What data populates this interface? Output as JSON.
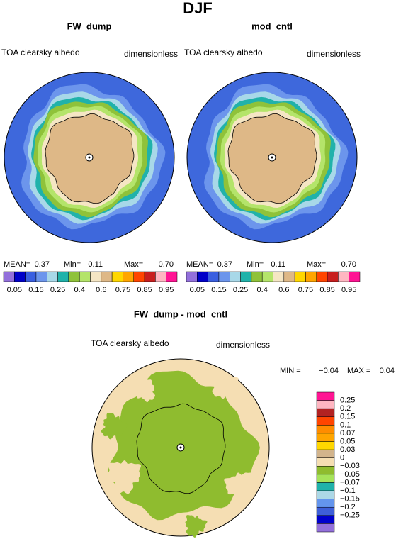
{
  "title": "DJF",
  "panels": [
    {
      "title": "FW_dump",
      "variable": "TOA clearsky albedo",
      "units": "dimensionless",
      "stats": {
        "mean_label": "MEAN=",
        "mean": "0.37",
        "min_label": "Min=",
        "min": "0.11",
        "max_label": "Max=",
        "max": "0.70"
      }
    },
    {
      "title": "mod_cntl",
      "variable": "TOA clearsky albedo",
      "units": "dimensionless",
      "stats": {
        "mean_label": "MEAN=",
        "mean": "0.37",
        "min_label": "Min=",
        "min": "0.11",
        "max_label": "Max=",
        "max": "0.70"
      }
    }
  ],
  "colorbar": {
    "colors": [
      "#9370db",
      "#0000c8",
      "#3a5fe0",
      "#6c95ec",
      "#a8d8e8",
      "#20b2aa",
      "#8fc23a",
      "#b4e46a",
      "#f5e6c4",
      "#deb887",
      "#ffd700",
      "#ffa500",
      "#ff4500",
      "#c81e1e",
      "#ffb6c1",
      "#ff1493"
    ],
    "labels": [
      "0.05",
      "0.15",
      "0.25",
      "0.4",
      "0.6",
      "0.75",
      "0.85",
      "0.95"
    ]
  },
  "difference": {
    "title": "FW_dump - mod_cntl",
    "variable": "TOA clearsky albedo",
    "units": "dimensionless",
    "stats": {
      "min_label": "MIN =",
      "min": "−0.04",
      "max_label": "MAX =",
      "max": "0.04"
    },
    "colorbar": {
      "colors": [
        "#ff1493",
        "#ffb6c1",
        "#b22222",
        "#ff4500",
        "#ff8c00",
        "#ffa500",
        "#ffd700",
        "#d2b48c",
        "#f5deb3",
        "#8fbc2f",
        "#a6e35a",
        "#20b2aa",
        "#add8e6",
        "#6495ed",
        "#3e5fd8",
        "#0000cd",
        "#9370db"
      ],
      "labels": [
        "0.25",
        "0.2",
        "0.15",
        "0.1",
        "0.07",
        "0.05",
        "0.03",
        "0",
        "−0.03",
        "−0.05",
        "−0.07",
        "−0.1",
        "−0.15",
        "−0.2",
        "−0.25"
      ]
    }
  }
}
